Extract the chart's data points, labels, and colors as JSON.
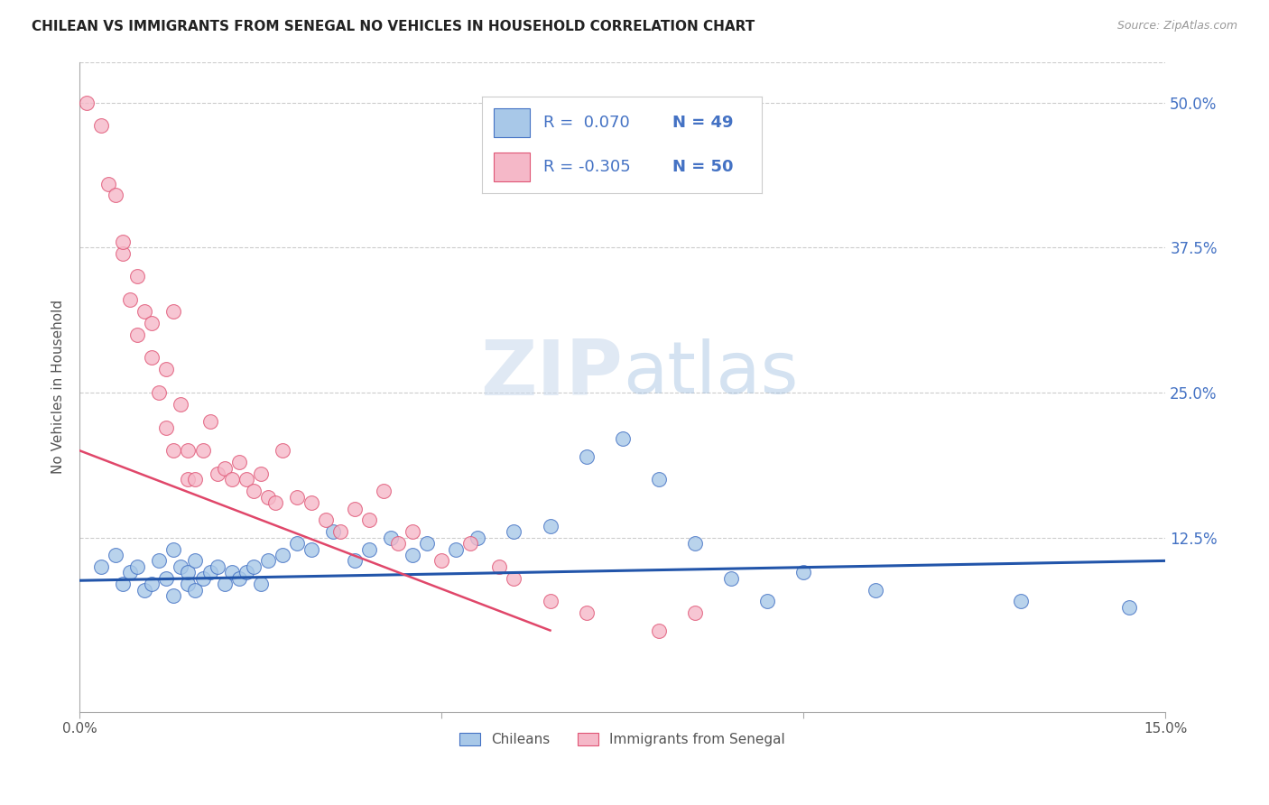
{
  "title": "CHILEAN VS IMMIGRANTS FROM SENEGAL NO VEHICLES IN HOUSEHOLD CORRELATION CHART",
  "source": "Source: ZipAtlas.com",
  "ylabel": "No Vehicles in Household",
  "xlim": [
    0.0,
    0.15
  ],
  "ylim": [
    -0.025,
    0.535
  ],
  "yticks_right": [
    0.0,
    0.125,
    0.25,
    0.375,
    0.5
  ],
  "ytick_labels_right": [
    "",
    "12.5%",
    "25.0%",
    "37.5%",
    "50.0%"
  ],
  "legend_r_blue": "R =  0.070",
  "legend_n_blue": "N = 49",
  "legend_r_pink": "R = -0.305",
  "legend_n_pink": "N = 50",
  "blue_fill": "#a8c8e8",
  "pink_fill": "#f5b8c8",
  "blue_edge": "#4472c4",
  "pink_edge": "#e05575",
  "blue_line": "#2255aa",
  "pink_line": "#e0476a",
  "legend_text_color": "#4472c4",
  "watermark_zip_color": "#c8d8ec",
  "watermark_atlas_color": "#a0c0e0",
  "chileans_x": [
    0.003,
    0.005,
    0.006,
    0.007,
    0.008,
    0.009,
    0.01,
    0.011,
    0.012,
    0.013,
    0.013,
    0.014,
    0.015,
    0.015,
    0.016,
    0.016,
    0.017,
    0.018,
    0.019,
    0.02,
    0.021,
    0.022,
    0.023,
    0.024,
    0.025,
    0.026,
    0.028,
    0.03,
    0.032,
    0.035,
    0.038,
    0.04,
    0.043,
    0.046,
    0.048,
    0.052,
    0.055,
    0.06,
    0.065,
    0.07,
    0.075,
    0.08,
    0.085,
    0.09,
    0.095,
    0.1,
    0.11,
    0.13,
    0.145
  ],
  "chileans_y": [
    0.1,
    0.11,
    0.085,
    0.095,
    0.1,
    0.08,
    0.085,
    0.105,
    0.09,
    0.075,
    0.115,
    0.1,
    0.085,
    0.095,
    0.08,
    0.105,
    0.09,
    0.095,
    0.1,
    0.085,
    0.095,
    0.09,
    0.095,
    0.1,
    0.085,
    0.105,
    0.11,
    0.12,
    0.115,
    0.13,
    0.105,
    0.115,
    0.125,
    0.11,
    0.12,
    0.115,
    0.125,
    0.13,
    0.135,
    0.195,
    0.21,
    0.175,
    0.12,
    0.09,
    0.07,
    0.095,
    0.08,
    0.07,
    0.065
  ],
  "senegal_x": [
    0.001,
    0.003,
    0.004,
    0.005,
    0.006,
    0.006,
    0.007,
    0.008,
    0.008,
    0.009,
    0.01,
    0.01,
    0.011,
    0.012,
    0.012,
    0.013,
    0.013,
    0.014,
    0.015,
    0.015,
    0.016,
    0.017,
    0.018,
    0.019,
    0.02,
    0.021,
    0.022,
    0.023,
    0.024,
    0.025,
    0.026,
    0.027,
    0.028,
    0.03,
    0.032,
    0.034,
    0.036,
    0.038,
    0.04,
    0.042,
    0.044,
    0.046,
    0.05,
    0.054,
    0.058,
    0.06,
    0.065,
    0.07,
    0.08,
    0.085
  ],
  "senegal_y": [
    0.5,
    0.48,
    0.43,
    0.42,
    0.37,
    0.38,
    0.33,
    0.3,
    0.35,
    0.32,
    0.28,
    0.31,
    0.25,
    0.22,
    0.27,
    0.32,
    0.2,
    0.24,
    0.2,
    0.175,
    0.175,
    0.2,
    0.225,
    0.18,
    0.185,
    0.175,
    0.19,
    0.175,
    0.165,
    0.18,
    0.16,
    0.155,
    0.2,
    0.16,
    0.155,
    0.14,
    0.13,
    0.15,
    0.14,
    0.165,
    0.12,
    0.13,
    0.105,
    0.12,
    0.1,
    0.09,
    0.07,
    0.06,
    0.045,
    0.06
  ],
  "blue_trend_x": [
    0.0,
    0.15
  ],
  "blue_trend_y": [
    0.088,
    0.105
  ],
  "pink_trend_x": [
    0.0,
    0.065
  ],
  "pink_trend_y": [
    0.2,
    0.045
  ]
}
